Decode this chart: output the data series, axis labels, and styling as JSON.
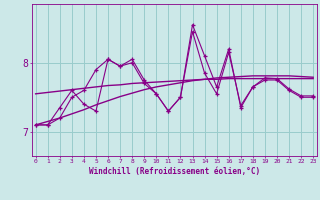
{
  "title": "",
  "xlabel": "Windchill (Refroidissement éolien,°C)",
  "ylabel": "",
  "background_color": "#cce8e8",
  "line_color": "#880088",
  "grid_color": "#99cccc",
  "x_ticks": [
    0,
    1,
    2,
    3,
    4,
    5,
    6,
    7,
    8,
    9,
    10,
    11,
    12,
    13,
    14,
    15,
    16,
    17,
    18,
    19,
    20,
    21,
    22,
    23
  ],
  "y_ticks": [
    7,
    8
  ],
  "ylim": [
    6.65,
    8.85
  ],
  "xlim": [
    -0.3,
    23.3
  ],
  "series1": [
    7.1,
    7.1,
    7.2,
    7.5,
    7.6,
    7.9,
    8.05,
    7.95,
    8.05,
    7.75,
    7.55,
    7.3,
    7.5,
    8.55,
    8.1,
    7.65,
    8.2,
    7.35,
    7.65,
    7.75,
    7.75,
    7.6,
    7.5,
    7.5
  ],
  "series2": [
    7.1,
    7.1,
    7.35,
    7.6,
    7.4,
    7.3,
    8.05,
    7.95,
    8.0,
    7.7,
    7.55,
    7.3,
    7.5,
    8.45,
    7.85,
    7.55,
    8.15,
    7.38,
    7.65,
    7.78,
    7.77,
    7.62,
    7.52,
    7.52
  ],
  "regression1": [
    7.1,
    7.15,
    7.2,
    7.26,
    7.32,
    7.39,
    7.45,
    7.51,
    7.56,
    7.61,
    7.65,
    7.68,
    7.71,
    7.74,
    7.76,
    7.78,
    7.79,
    7.8,
    7.81,
    7.81,
    7.81,
    7.81,
    7.8,
    7.79
  ],
  "regression2": [
    7.55,
    7.57,
    7.59,
    7.61,
    7.63,
    7.65,
    7.67,
    7.68,
    7.7,
    7.71,
    7.72,
    7.73,
    7.74,
    7.75,
    7.76,
    7.76,
    7.77,
    7.77,
    7.77,
    7.77,
    7.77,
    7.77,
    7.77,
    7.77
  ]
}
